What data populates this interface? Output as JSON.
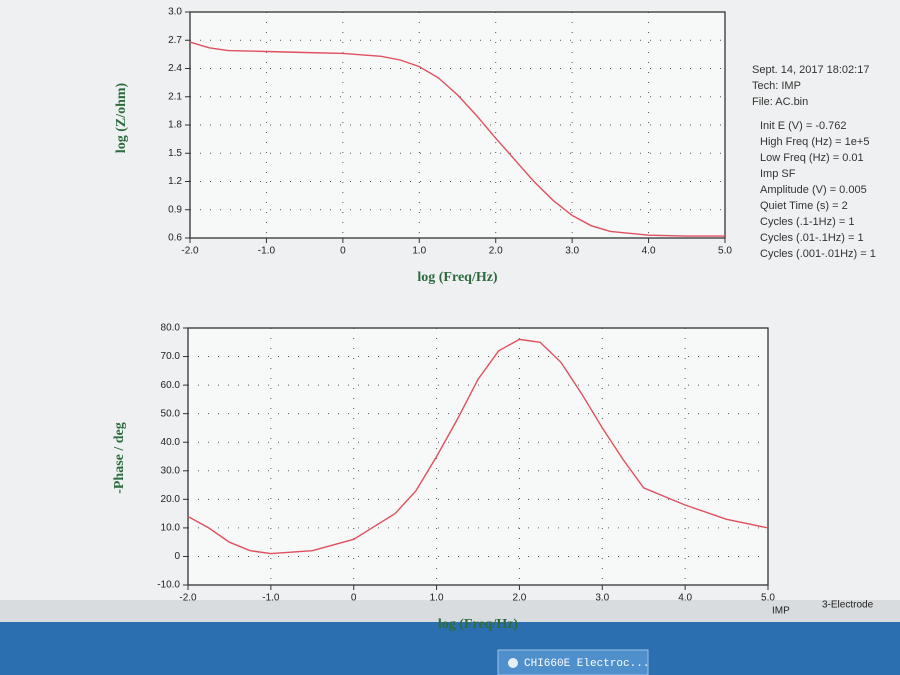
{
  "chart_data": [
    {
      "type": "line",
      "x_label": "log (Freq/Hz)",
      "y_label": "log (Z/ohm)",
      "color": "#e0505f",
      "x": [
        -2,
        -1.75,
        -1.5,
        -1,
        -0.5,
        0,
        0.5,
        0.75,
        1,
        1.25,
        1.5,
        1.75,
        2,
        2.25,
        2.5,
        2.75,
        3,
        3.25,
        3.5,
        4,
        4.5,
        5
      ],
      "values": [
        2.68,
        2.62,
        2.59,
        2.58,
        2.57,
        2.56,
        2.53,
        2.49,
        2.42,
        2.3,
        2.12,
        1.9,
        1.66,
        1.43,
        1.2,
        1.0,
        0.84,
        0.73,
        0.67,
        0.63,
        0.62,
        0.62
      ],
      "xlim": [
        -2,
        5
      ],
      "ylim": [
        0.6,
        3.0
      ],
      "grid": true,
      "xticks": [
        {
          "value": -2,
          "label": "-2.0"
        },
        {
          "value": -1,
          "label": "-1.0"
        },
        0,
        {
          "value": 1,
          "label": "1.0"
        },
        {
          "value": 2,
          "label": "2.0"
        },
        {
          "value": 3,
          "label": "3.0"
        },
        {
          "value": 4,
          "label": "4.0"
        },
        {
          "value": 5,
          "label": "5.0"
        }
      ],
      "yticks": [
        0.6,
        0.9,
        1.2,
        1.5,
        1.8,
        2.1,
        2.4,
        2.7,
        {
          "value": 3,
          "label": "3.0"
        }
      ]
    },
    {
      "type": "line",
      "x_label": "log (Freq/Hz)",
      "y_label": "-Phase / deg",
      "color": "#e0505f",
      "x": [
        -2,
        -1.75,
        -1.5,
        -1.25,
        -1,
        -0.5,
        0,
        0.5,
        0.75,
        1,
        1.25,
        1.5,
        1.75,
        2,
        2.25,
        2.5,
        2.75,
        3,
        3.25,
        3.5,
        4,
        4.5,
        5
      ],
      "values": [
        14,
        10,
        5,
        2,
        1,
        2,
        6,
        15,
        23,
        35,
        48,
        62,
        72,
        76,
        75,
        68,
        57,
        45,
        34,
        24,
        18,
        13,
        10
      ],
      "xlim": [
        -2,
        5
      ],
      "ylim": [
        -10,
        80
      ],
      "grid": true,
      "xticks": [
        {
          "value": -2,
          "label": "-2.0"
        },
        {
          "value": -1,
          "label": "-1.0"
        },
        0,
        {
          "value": 1,
          "label": "1.0"
        },
        {
          "value": 2,
          "label": "2.0"
        },
        {
          "value": 3,
          "label": "3.0"
        },
        {
          "value": 4,
          "label": "4.0"
        },
        {
          "value": 5,
          "label": "5.0"
        }
      ],
      "yticks": [
        {
          "value": -10,
          "label": "-10.0"
        },
        0,
        {
          "value": 10,
          "label": "10.0"
        },
        {
          "value": 20,
          "label": "20.0"
        },
        {
          "value": 30,
          "label": "30.0"
        },
        {
          "value": 40,
          "label": "40.0"
        },
        {
          "value": 50,
          "label": "50.0"
        },
        {
          "value": 60,
          "label": "60.0"
        },
        {
          "value": 70,
          "label": "70.0"
        },
        {
          "value": 80,
          "label": "80.0"
        }
      ]
    }
  ],
  "info_panel": [
    "Sept. 14, 2017   18:02:17",
    "Tech: IMP",
    "File: AC.bin",
    "Init E (V) = -0.762",
    "High Freq (Hz) = 1e+5",
    "Low Freq (Hz) = 0.01",
    "Imp SF",
    "Amplitude (V) = 0.005",
    "Quiet Time (s) = 2",
    "Cycles (.1-1Hz) = 1",
    "Cycles (.01-.1Hz) = 1",
    "Cycles (.001-.01Hz) = 1"
  ],
  "status_bar": [
    "IMP",
    "3-Electrode"
  ],
  "taskbar": {
    "app": "CHI660E Electroc..."
  }
}
